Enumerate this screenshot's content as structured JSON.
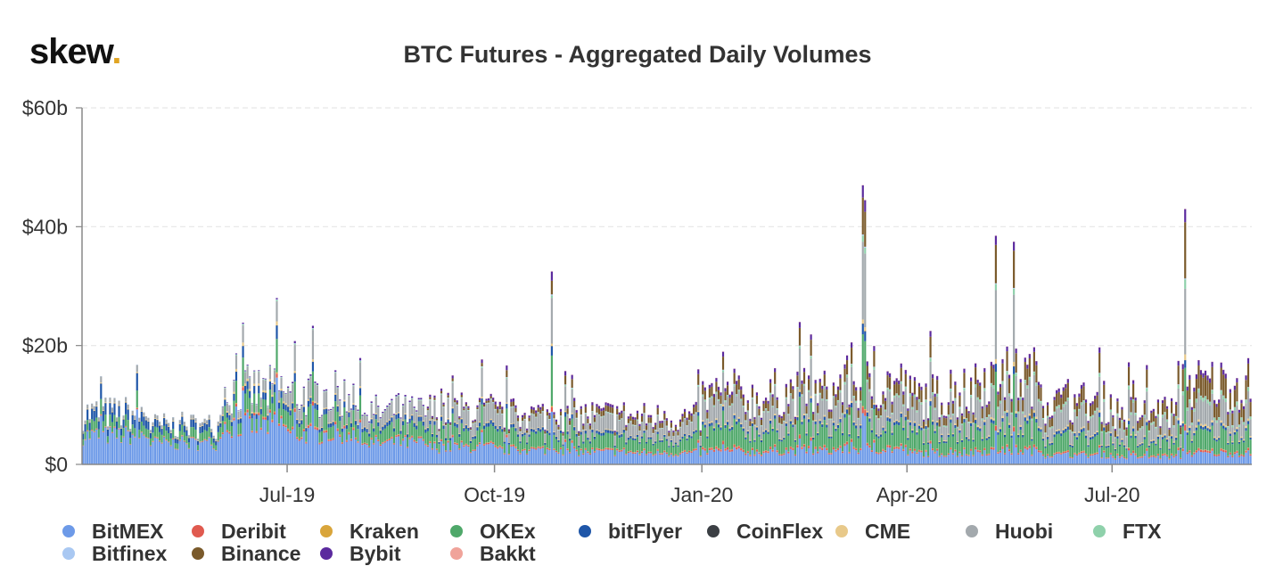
{
  "logo": {
    "text": "skew",
    "dot": "."
  },
  "chart_data": {
    "type": "bar",
    "stacked": true,
    "title": "BTC Futures - Aggregated Daily Volumes",
    "xlabel": "",
    "ylabel": "",
    "y_unit": "$b",
    "ylim": [
      0,
      60
    ],
    "yticks": [
      0,
      20,
      40,
      60
    ],
    "ytick_labels": [
      "$0",
      "$20b",
      "$40b",
      "$60b"
    ],
    "x_start": "2019-04-01",
    "x_end": "2020-08-31",
    "xticks": [
      {
        "date": "2019-07-01",
        "label": "Jul-19"
      },
      {
        "date": "2019-10-01",
        "label": "Oct-19"
      },
      {
        "date": "2020-01-01",
        "label": "Jan-20"
      },
      {
        "date": "2020-04-01",
        "label": "Apr-20"
      },
      {
        "date": "2020-07-01",
        "label": "Jul-20"
      }
    ],
    "grid": true,
    "legend_position": "bottom",
    "series": [
      {
        "name": "BitMEX",
        "color": "#6d9ae8"
      },
      {
        "name": "Deribit",
        "color": "#e05a4f"
      },
      {
        "name": "Kraken",
        "color": "#d9a53b"
      },
      {
        "name": "OKEx",
        "color": "#4fa86a"
      },
      {
        "name": "bitFlyer",
        "color": "#1f56a8"
      },
      {
        "name": "CoinFlex",
        "color": "#3b3f44"
      },
      {
        "name": "CME",
        "color": "#e8c98a"
      },
      {
        "name": "Huobi",
        "color": "#a3a9ad"
      },
      {
        "name": "FTX",
        "color": "#8fd1ab"
      },
      {
        "name": "Bitfinex",
        "color": "#a9c8f2"
      },
      {
        "name": "Binance",
        "color": "#7a5a2b"
      },
      {
        "name": "Bybit",
        "color": "#5b2a9e"
      },
      {
        "name": "Bakkt",
        "color": "#f0a39a"
      }
    ],
    "monthly_approx": [
      {
        "month": "2019-04",
        "BitMEX": 4.8,
        "Deribit": 0.1,
        "Kraken": 0.05,
        "OKEx": 1.5,
        "bitFlyer": 1.5,
        "CoinFlex": 0.02,
        "CME": 0.1,
        "Huobi": 0.6,
        "FTX": 0.0,
        "Bitfinex": 0.02,
        "Binance": 0.0,
        "Bybit": 0.0,
        "Bakkt": 0.0
      },
      {
        "month": "2019-05",
        "BitMEX": 3.5,
        "Deribit": 0.1,
        "Kraken": 0.05,
        "OKEx": 1.3,
        "bitFlyer": 1.0,
        "CoinFlex": 0.02,
        "CME": 0.1,
        "Huobi": 0.5,
        "FTX": 0.0,
        "Bitfinex": 0.02,
        "Binance": 0.0,
        "Bybit": 0.0,
        "Bakkt": 0.0
      },
      {
        "month": "2019-06",
        "BitMEX": 6.5,
        "Deribit": 0.3,
        "Kraken": 0.1,
        "OKEx": 2.5,
        "bitFlyer": 1.0,
        "CoinFlex": 0.02,
        "CME": 0.3,
        "Huobi": 1.5,
        "FTX": 0.1,
        "Bitfinex": 0.05,
        "Binance": 0.0,
        "Bybit": 0.1,
        "Bakkt": 0.0
      },
      {
        "month": "2019-07",
        "BitMEX": 5.0,
        "Deribit": 0.3,
        "Kraken": 0.1,
        "OKEx": 2.5,
        "bitFlyer": 0.8,
        "CoinFlex": 0.02,
        "CME": 0.2,
        "Huobi": 2.5,
        "FTX": 0.1,
        "Bitfinex": 0.05,
        "Binance": 0.0,
        "Bybit": 0.2,
        "Bakkt": 0.0
      },
      {
        "month": "2019-08",
        "BitMEX": 3.5,
        "Deribit": 0.2,
        "Kraken": 0.05,
        "OKEx": 2.0,
        "bitFlyer": 0.6,
        "CoinFlex": 0.02,
        "CME": 0.15,
        "Huobi": 2.0,
        "FTX": 0.1,
        "Bitfinex": 0.05,
        "Binance": 0.0,
        "Bybit": 0.2,
        "Bakkt": 0.0
      },
      {
        "month": "2019-09",
        "BitMEX": 2.8,
        "Deribit": 0.2,
        "Kraken": 0.05,
        "OKEx": 2.2,
        "bitFlyer": 0.5,
        "CoinFlex": 0.02,
        "CME": 0.15,
        "Huobi": 2.5,
        "FTX": 0.1,
        "Bitfinex": 0.05,
        "Binance": 0.3,
        "Bybit": 0.3,
        "Bakkt": 0.01
      },
      {
        "month": "2019-10",
        "BitMEX": 2.3,
        "Deribit": 0.2,
        "Kraken": 0.05,
        "OKEx": 2.2,
        "bitFlyer": 0.4,
        "CoinFlex": 0.02,
        "CME": 0.1,
        "Huobi": 2.0,
        "FTX": 0.1,
        "Bitfinex": 0.05,
        "Binance": 0.6,
        "Bybit": 0.4,
        "Bakkt": 0.01
      },
      {
        "month": "2019-11",
        "BitMEX": 2.0,
        "Deribit": 0.2,
        "Kraken": 0.05,
        "OKEx": 2.0,
        "bitFlyer": 0.4,
        "CoinFlex": 0.02,
        "CME": 0.1,
        "Huobi": 2.2,
        "FTX": 0.1,
        "Bitfinex": 0.05,
        "Binance": 0.8,
        "Bybit": 0.4,
        "Bakkt": 0.01
      },
      {
        "month": "2019-12",
        "BitMEX": 1.8,
        "Deribit": 0.2,
        "Kraken": 0.05,
        "OKEx": 2.0,
        "bitFlyer": 0.3,
        "CoinFlex": 0.02,
        "CME": 0.1,
        "Huobi": 2.0,
        "FTX": 0.1,
        "Bitfinex": 0.05,
        "Binance": 0.9,
        "Bybit": 0.4,
        "Bakkt": 0.01
      },
      {
        "month": "2020-01",
        "BitMEX": 2.0,
        "Deribit": 0.3,
        "Kraken": 0.05,
        "OKEx": 3.0,
        "bitFlyer": 0.4,
        "CoinFlex": 0.02,
        "CME": 0.2,
        "Huobi": 3.2,
        "FTX": 0.2,
        "Bitfinex": 0.05,
        "Binance": 1.3,
        "Bybit": 0.5,
        "Bakkt": 0.01
      },
      {
        "month": "2020-02",
        "BitMEX": 2.2,
        "Deribit": 0.3,
        "Kraken": 0.05,
        "OKEx": 3.2,
        "bitFlyer": 0.4,
        "CoinFlex": 0.02,
        "CME": 0.2,
        "Huobi": 3.5,
        "FTX": 0.2,
        "Bitfinex": 0.05,
        "Binance": 1.5,
        "Bybit": 0.5,
        "Bakkt": 0.01
      },
      {
        "month": "2020-03",
        "BitMEX": 2.5,
        "Deribit": 0.3,
        "Kraken": 0.05,
        "OKEx": 3.5,
        "bitFlyer": 0.5,
        "CoinFlex": 0.02,
        "CME": 0.2,
        "Huobi": 3.8,
        "FTX": 0.3,
        "Bitfinex": 0.05,
        "Binance": 1.8,
        "Bybit": 0.6,
        "Bakkt": 0.01
      },
      {
        "month": "2020-04",
        "BitMEX": 1.8,
        "Deribit": 0.2,
        "Kraken": 0.05,
        "OKEx": 3.0,
        "bitFlyer": 0.4,
        "CoinFlex": 0.02,
        "CME": 0.2,
        "Huobi": 3.2,
        "FTX": 0.3,
        "Bitfinex": 0.05,
        "Binance": 1.8,
        "Bybit": 0.5,
        "Bakkt": 0.01
      },
      {
        "month": "2020-05",
        "BitMEX": 2.2,
        "Deribit": 0.3,
        "Kraken": 0.05,
        "OKEx": 3.5,
        "bitFlyer": 0.5,
        "CoinFlex": 0.02,
        "CME": 0.3,
        "Huobi": 4.5,
        "FTX": 0.4,
        "Bitfinex": 0.05,
        "Binance": 2.5,
        "Bybit": 0.6,
        "Bakkt": 0.01
      },
      {
        "month": "2020-06",
        "BitMEX": 1.5,
        "Deribit": 0.2,
        "Kraken": 0.05,
        "OKEx": 2.5,
        "bitFlyer": 0.4,
        "CoinFlex": 0.02,
        "CME": 0.2,
        "Huobi": 3.0,
        "FTX": 0.3,
        "Bitfinex": 0.05,
        "Binance": 1.8,
        "Bybit": 0.5,
        "Bakkt": 0.01
      },
      {
        "month": "2020-07",
        "BitMEX": 1.2,
        "Deribit": 0.2,
        "Kraken": 0.05,
        "OKEx": 2.0,
        "bitFlyer": 0.3,
        "CoinFlex": 0.02,
        "CME": 0.2,
        "Huobi": 2.5,
        "FTX": 0.3,
        "Bitfinex": 0.05,
        "Binance": 1.6,
        "Bybit": 0.4,
        "Bakkt": 0.01
      },
      {
        "month": "2020-08",
        "BitMEX": 1.8,
        "Deribit": 0.3,
        "Kraken": 0.05,
        "OKEx": 3.0,
        "bitFlyer": 0.4,
        "CoinFlex": 0.02,
        "CME": 0.3,
        "Huobi": 3.5,
        "FTX": 0.5,
        "Bitfinex": 0.05,
        "Binance": 3.0,
        "Bybit": 0.7,
        "Bakkt": 0.01
      }
    ],
    "notable_peaks": [
      {
        "date": "2019-06-26",
        "total": 28
      },
      {
        "date": "2019-10-26",
        "total": 32.5
      },
      {
        "date": "2020-03-12",
        "total": 47
      },
      {
        "date": "2020-03-13",
        "total": 44.5
      },
      {
        "date": "2020-05-10",
        "total": 38.5
      },
      {
        "date": "2020-05-18",
        "total": 37.5
      },
      {
        "date": "2020-08-02",
        "total": 43
      }
    ]
  }
}
